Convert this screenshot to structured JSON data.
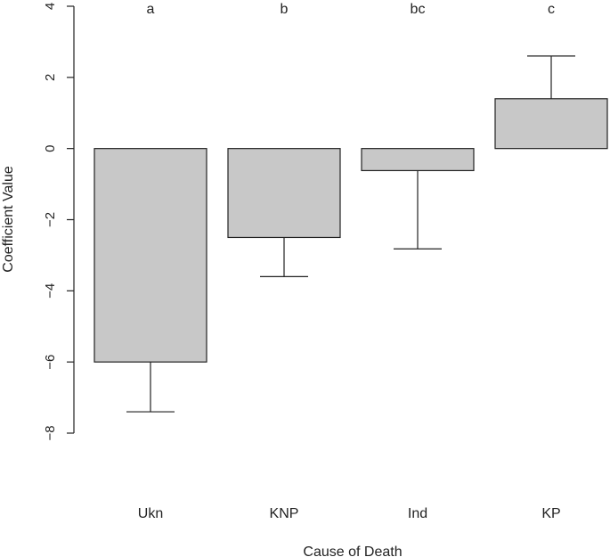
{
  "chart_data": {
    "type": "bar",
    "title": "",
    "xlabel": "Cause of Death",
    "ylabel": "Coefficient Value",
    "categories": [
      "Ukn",
      "KNP",
      "Ind",
      "KP"
    ],
    "values": [
      -6.0,
      -2.5,
      -0.62,
      1.4
    ],
    "error_ends": [
      -7.4,
      -3.6,
      -2.82,
      2.6
    ],
    "group_labels": [
      "a",
      "b",
      "bc",
      "c"
    ],
    "ylim": [
      -8,
      4
    ],
    "yticks": [
      -8,
      -6,
      -4,
      -2,
      0,
      2,
      4
    ],
    "ytick_labels": [
      "−8",
      "−6",
      "−4",
      "−2",
      "0",
      "2",
      "4"
    ],
    "grid": false,
    "legend": "none",
    "bar_color": "#c8c8c8",
    "edge_color": "#222222"
  }
}
